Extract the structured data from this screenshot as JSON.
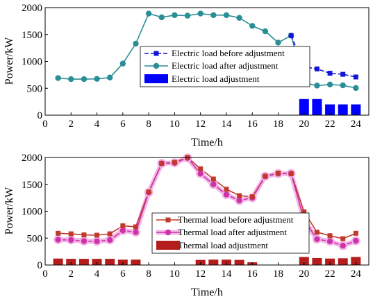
{
  "chart_data": [
    {
      "type": "line",
      "xlabel": "Time/h",
      "ylabel": "Power/kW",
      "xlim": [
        0,
        25
      ],
      "ylim": [
        0,
        2000
      ],
      "x_ticks": [
        "0",
        "2",
        "4",
        "6",
        "8",
        "10",
        "12",
        "14",
        "16",
        "18",
        "20",
        "22",
        "24"
      ],
      "y_ticks": [
        "0",
        "500",
        "1000",
        "1500",
        "2000"
      ],
      "grid": false,
      "legend_position": "right",
      "colors": {
        "before": "#1515d8",
        "after": "#2a8e96",
        "adjustment": "#0000ff"
      },
      "series": [
        {
          "name": "Electric load before adjustment",
          "marker": "square",
          "x": [
            19,
            20,
            21,
            22,
            23,
            24
          ],
          "values": [
            1480,
            900,
            860,
            780,
            760,
            710
          ]
        },
        {
          "name": "Electric load after adjustment",
          "marker": "circle",
          "x": [
            1,
            2,
            3,
            4,
            5,
            6,
            7,
            8,
            9,
            10,
            11,
            12,
            13,
            14,
            15,
            16,
            17,
            18,
            19,
            20,
            21,
            22,
            23,
            24
          ],
          "values": [
            690,
            670,
            670,
            675,
            700,
            960,
            1330,
            1890,
            1820,
            1860,
            1850,
            1890,
            1860,
            1860,
            1810,
            1660,
            1560,
            1350,
            1480,
            600,
            550,
            570,
            555,
            505
          ]
        },
        {
          "name": "Electric load adjustment",
          "kind": "bar",
          "x": [
            20,
            21,
            22,
            23,
            24
          ],
          "values": [
            300,
            300,
            200,
            200,
            200
          ]
        }
      ]
    },
    {
      "type": "line",
      "xlabel": "Time/h",
      "ylabel": "Power/kW",
      "xlim": [
        0,
        25
      ],
      "ylim": [
        0,
        2000
      ],
      "x_ticks": [
        "0",
        "2",
        "4",
        "6",
        "8",
        "10",
        "12",
        "14",
        "16",
        "18",
        "20",
        "22",
        "24"
      ],
      "y_ticks": [
        "0",
        "500",
        "1000",
        "1500",
        "2000"
      ],
      "grid": false,
      "legend_position": "right",
      "colors": {
        "before": "#c0392b",
        "after": "#cc33aa",
        "glow": "#f4b6e6",
        "adjustment": "#b51c1c"
      },
      "series": [
        {
          "name": "Thermal load before adjustment",
          "marker": "square",
          "x": [
            1,
            2,
            3,
            4,
            5,
            6,
            7,
            8,
            9,
            10,
            11,
            12,
            13,
            14,
            15,
            16,
            17,
            18,
            19,
            20,
            21,
            22,
            23,
            24
          ],
          "values": [
            590,
            580,
            560,
            555,
            580,
            730,
            710,
            1360,
            1890,
            1910,
            2000,
            1790,
            1600,
            1410,
            1290,
            1270,
            1650,
            1710,
            1700,
            990,
            610,
            545,
            490,
            590
          ]
        },
        {
          "name": "Thermal load after adjustment",
          "marker": "circle",
          "x": [
            1,
            2,
            3,
            4,
            5,
            6,
            7,
            8,
            9,
            10,
            11,
            12,
            13,
            14,
            15,
            16,
            17,
            18,
            19,
            20,
            21,
            22,
            23,
            24
          ],
          "values": [
            470,
            465,
            445,
            440,
            465,
            640,
            610,
            1350,
            1890,
            1900,
            1990,
            1700,
            1500,
            1310,
            1200,
            1250,
            1650,
            1700,
            1700,
            840,
            480,
            440,
            360,
            450
          ]
        },
        {
          "name": "Thermal load adjustment",
          "kind": "bar",
          "x": [
            1,
            2,
            3,
            4,
            5,
            6,
            7,
            12,
            13,
            14,
            15,
            16,
            20,
            21,
            22,
            23,
            24
          ],
          "values": [
            120,
            115,
            115,
            115,
            115,
            100,
            100,
            95,
            100,
            100,
            95,
            50,
            150,
            130,
            120,
            125,
            150
          ]
        }
      ]
    }
  ]
}
